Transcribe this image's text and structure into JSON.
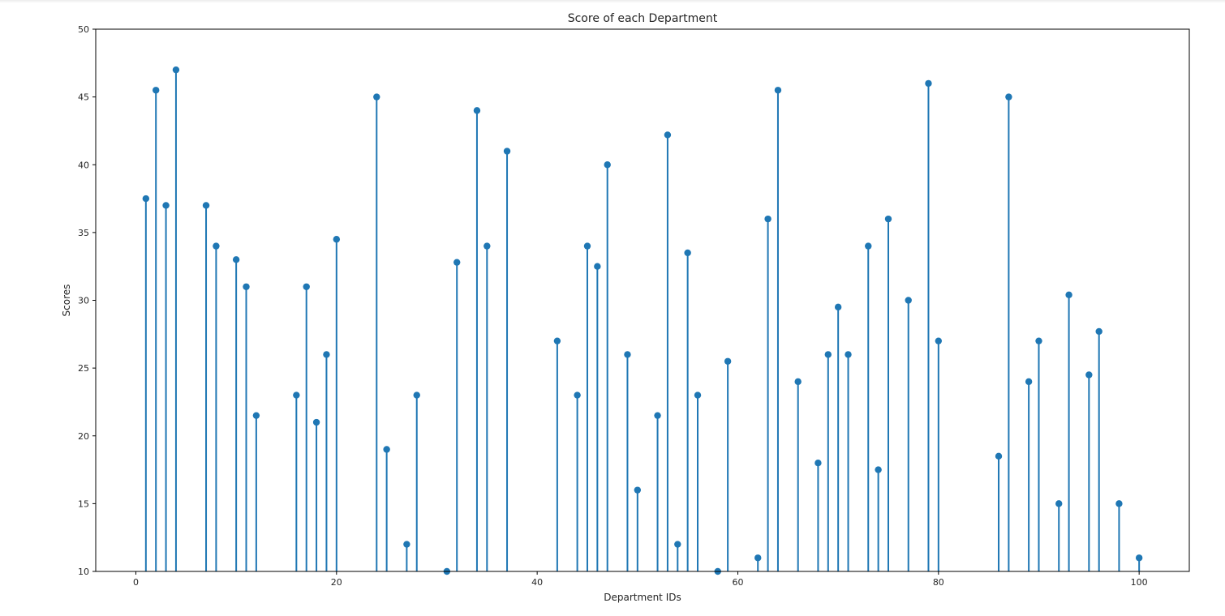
{
  "chart_data": {
    "type": "stem",
    "title": "Score of each Department",
    "xlabel": "Department IDs",
    "ylabel": "Scores",
    "xlim": [
      -4,
      105
    ],
    "ylim": [
      10,
      50
    ],
    "xticks": [
      0,
      20,
      40,
      60,
      80,
      100
    ],
    "yticks": [
      10,
      15,
      20,
      25,
      30,
      35,
      40,
      45,
      50
    ],
    "grid": false,
    "marker_color": "#1f77b4",
    "stem_color": "#1f77b4",
    "baseline": 10,
    "x": [
      1,
      2,
      3,
      4,
      7,
      8,
      10,
      11,
      12,
      16,
      17,
      18,
      19,
      20,
      24,
      25,
      27,
      28,
      31,
      32,
      34,
      35,
      37,
      42,
      44,
      45,
      46,
      47,
      49,
      50,
      52,
      53,
      54,
      55,
      56,
      58,
      59,
      62,
      63,
      64,
      66,
      68,
      69,
      70,
      71,
      73,
      74,
      75,
      77,
      79,
      80,
      86,
      87,
      89,
      90,
      92,
      93,
      95,
      96,
      98,
      100
    ],
    "values": [
      37.5,
      45.5,
      37,
      47,
      37,
      34,
      33,
      31,
      21.5,
      23,
      31,
      21,
      26,
      34.5,
      45,
      19,
      12,
      23,
      10,
      32.8,
      44,
      34,
      41,
      27,
      23,
      34,
      32.5,
      40,
      26,
      16,
      21.5,
      42.2,
      12,
      33.5,
      23,
      10,
      25.5,
      11,
      36,
      45.5,
      24,
      18,
      26,
      29.5,
      26,
      34,
      17.5,
      36,
      30,
      46,
      27,
      18.5,
      45,
      24,
      27,
      15,
      30.4,
      24.5,
      27.7,
      15,
      11
    ]
  }
}
